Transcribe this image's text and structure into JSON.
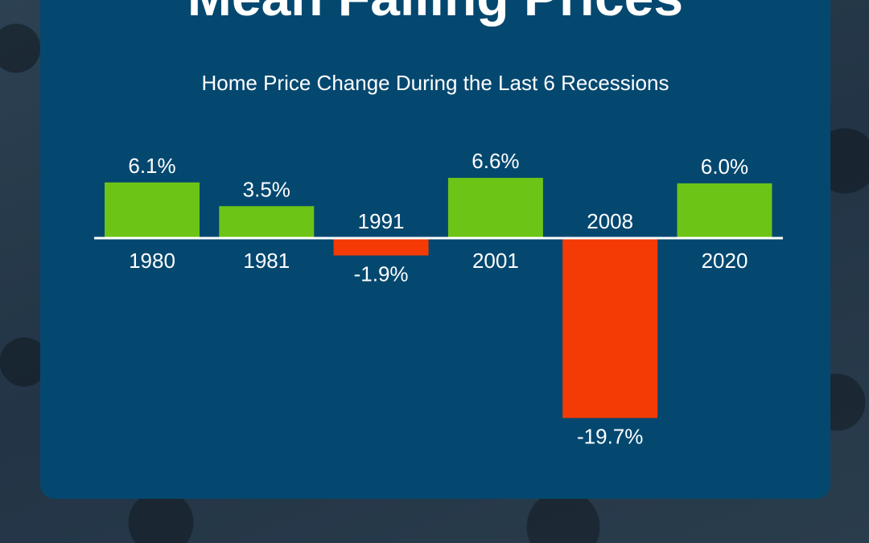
{
  "header": {
    "title": "Mean Falling Prices",
    "subtitle": "Home Price Change During the Last 6 Recessions"
  },
  "colors": {
    "positive": "#6cc417",
    "negative": "#f43a05",
    "card": "#044870",
    "text": "#ffffff"
  },
  "chart_data": {
    "type": "bar",
    "title": "Home Price Change During the Last 6 Recessions",
    "xlabel": "",
    "ylabel": "",
    "categories": [
      "1980",
      "1981",
      "1991",
      "2001",
      "2008",
      "2020"
    ],
    "values": [
      6.1,
      3.5,
      -1.9,
      6.6,
      -19.7,
      6.0
    ],
    "value_labels": [
      "6.1%",
      "3.5%",
      "-1.9%",
      "6.6%",
      "-19.7%",
      "6.0%"
    ],
    "unit": "%",
    "grid": false,
    "legend": "none"
  }
}
